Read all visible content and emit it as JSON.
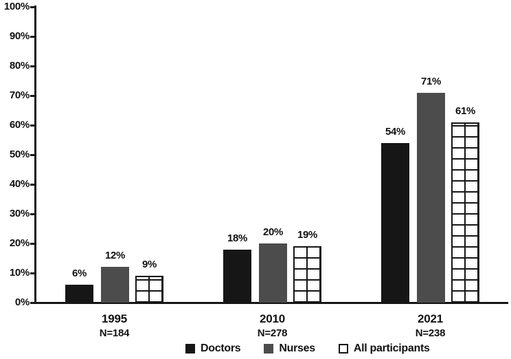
{
  "chart_data": {
    "type": "bar",
    "title": "",
    "xlabel": "",
    "ylabel": "",
    "categories": [
      "1995",
      "2010",
      "2021"
    ],
    "category_sublabels": [
      "N=184",
      "N=278",
      "N=238"
    ],
    "series": [
      {
        "name": "Doctors",
        "style": "solid-black",
        "values": [
          6,
          18,
          54
        ]
      },
      {
        "name": "Nurses",
        "style": "solid-gray",
        "values": [
          12,
          20,
          71
        ]
      },
      {
        "name": "All participants",
        "style": "grid-pattern",
        "values": [
          9,
          19,
          61
        ]
      }
    ],
    "value_labels": [
      [
        "6%",
        "18%",
        "54%"
      ],
      [
        "12%",
        "20%",
        "71%"
      ],
      [
        "9%",
        "19%",
        "61%"
      ]
    ],
    "ylim": [
      0,
      100
    ],
    "ytick_step": 10,
    "ytick_labels": [
      "0%",
      "10%",
      "20%",
      "30%",
      "40%",
      "50%",
      "60%",
      "70%",
      "80%",
      "90%",
      "100%"
    ],
    "grid": false,
    "legend_position": "bottom",
    "colors": {
      "bar_black": "#161616",
      "bar_gray": "#4c4c4c",
      "pattern_bg": "#ffffff",
      "pattern_line": "#161616",
      "axis": "#161616",
      "text": "#111111",
      "background": "#ffffff"
    }
  }
}
